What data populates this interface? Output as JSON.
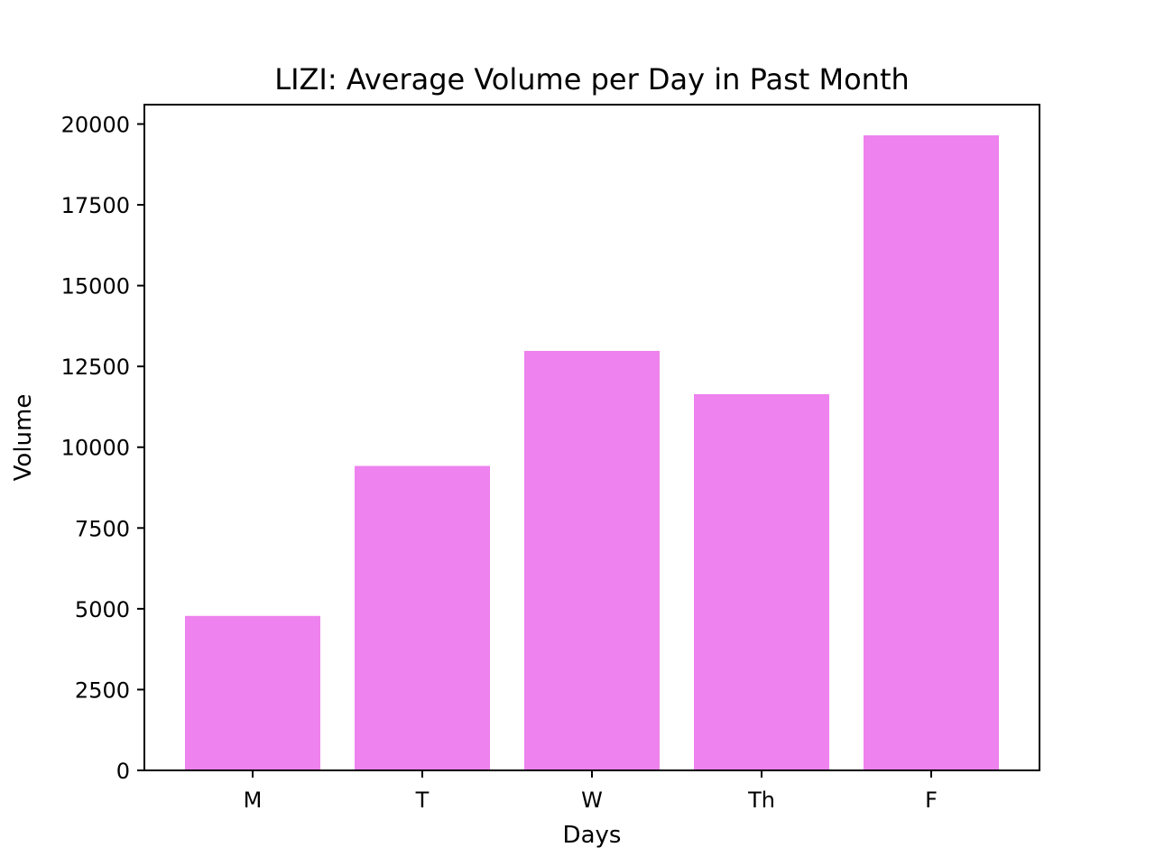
{
  "chart_data": {
    "type": "bar",
    "title": "LIZI: Average Volume per Day in Past Month",
    "xlabel": "Days",
    "ylabel": "Volume",
    "categories": [
      "M",
      "T",
      "W",
      "Th",
      "F"
    ],
    "values": [
      4780,
      9420,
      12980,
      11640,
      19650
    ],
    "ylim": [
      0,
      20600
    ],
    "yticks": [
      0,
      2500,
      5000,
      7500,
      10000,
      12500,
      15000,
      17500,
      20000
    ],
    "bar_color": "#ee82ee",
    "grid": false,
    "legend": "none"
  }
}
